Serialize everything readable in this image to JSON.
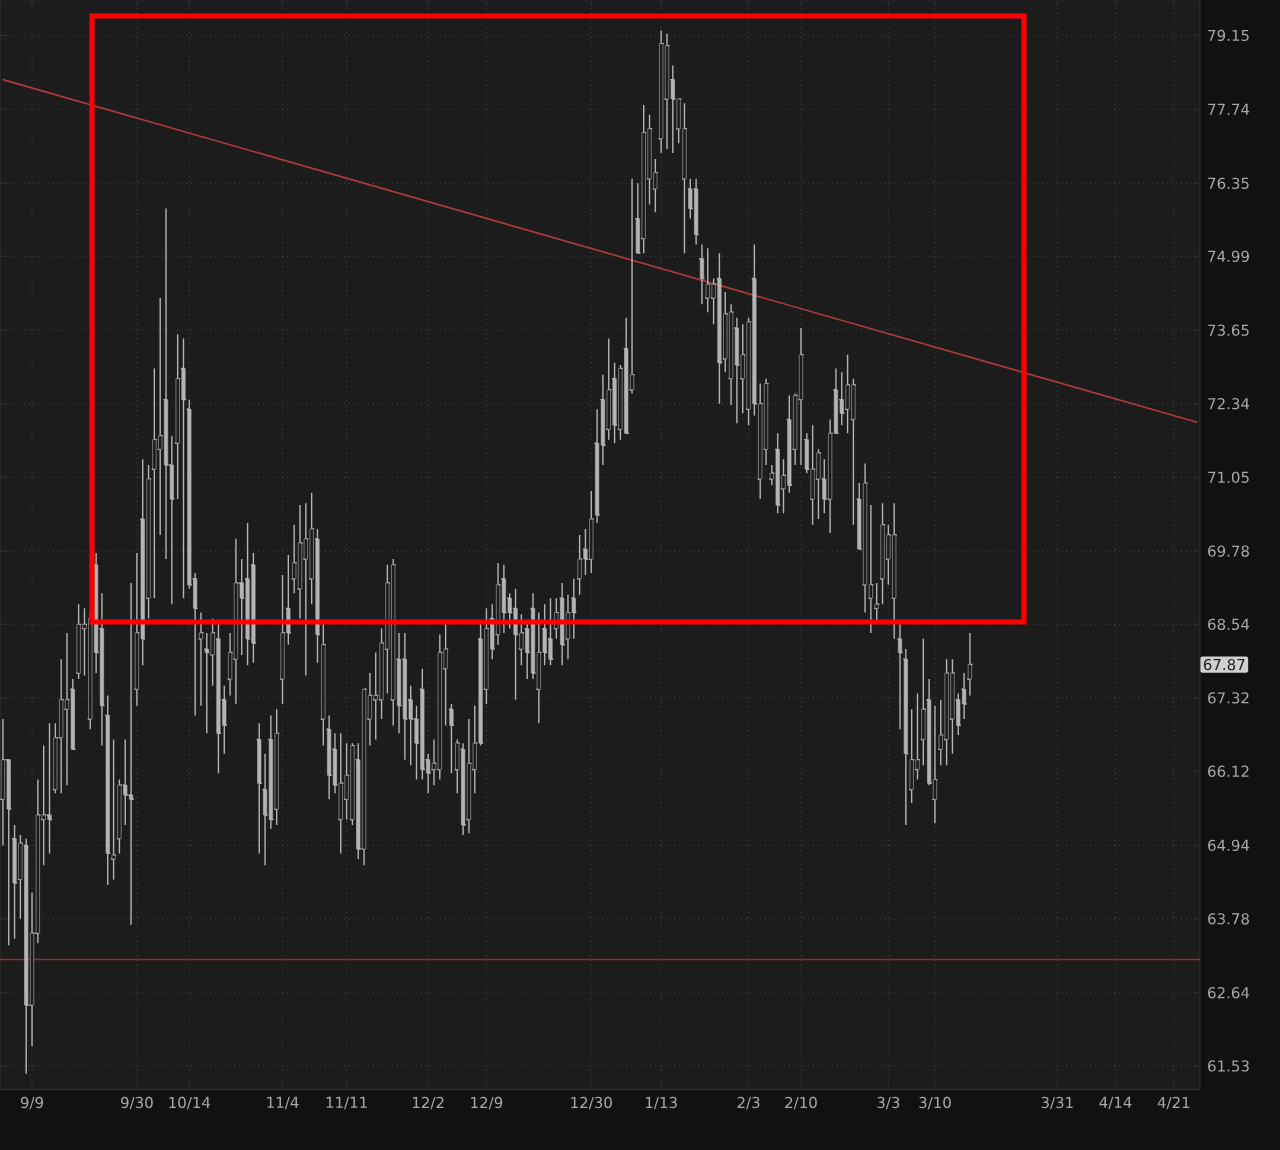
{
  "chart_data": {
    "type": "candlestick",
    "color": "#b4b4b4",
    "categories": [
      null,
      null,
      null,
      null,
      null,
      "9/9",
      null,
      null,
      null,
      null,
      null,
      null,
      null,
      null,
      null,
      null,
      null,
      null,
      null,
      null,
      null,
      null,
      null,
      "9/30",
      null,
      null,
      null,
      null,
      null,
      null,
      null,
      null,
      "10/14",
      null,
      null,
      null,
      null,
      null,
      null,
      null,
      null,
      null,
      null,
      null,
      null,
      null,
      null,
      null,
      "11/4",
      null,
      null,
      null,
      null,
      null,
      null,
      null,
      null,
      null,
      null,
      "11/11",
      null,
      null,
      null,
      null,
      null,
      null,
      null,
      null,
      null,
      null,
      null,
      null,
      null,
      "12/2",
      null,
      null,
      null,
      null,
      null,
      null,
      null,
      null,
      null,
      "12/9",
      null,
      null,
      null,
      null,
      null,
      null,
      null,
      null,
      null,
      null,
      null,
      null,
      null,
      null,
      null,
      null,
      null,
      "12/30",
      null,
      null,
      null,
      null,
      null,
      null,
      null,
      null,
      null,
      null,
      null,
      "1/13",
      null,
      null,
      null,
      null,
      null,
      null,
      null,
      null,
      null,
      null,
      null,
      null,
      null,
      null,
      "2/3",
      null,
      null,
      null,
      null,
      null,
      null,
      null,
      null,
      "2/10",
      null,
      null,
      null,
      null,
      null,
      null,
      null,
      null,
      null,
      null,
      null,
      null,
      null,
      null,
      "3/3",
      null,
      null,
      null,
      null,
      null,
      null,
      null,
      "3/10",
      null,
      null,
      null,
      null,
      null,
      null,
      null,
      null,
      null,
      null,
      null,
      null,
      null,
      null,
      null,
      null,
      null,
      null,
      null,
      null,
      "3/31",
      null,
      null,
      null,
      null,
      null,
      null,
      null,
      null,
      null,
      "4/14",
      null,
      null,
      null,
      null,
      null,
      null,
      null,
      null,
      null,
      "4/21",
      null,
      null,
      null,
      null
    ],
    "ohlc": [
      [
        65.67,
        66.97,
        64.94,
        66.31
      ],
      [
        66.31,
        66.31,
        63.37,
        65.51
      ],
      [
        65.04,
        65.26,
        63.47,
        64.34
      ],
      [
        64.4,
        65.1,
        63.78,
        64.97
      ],
      [
        64.94,
        65.04,
        61.41,
        62.45
      ],
      [
        62.45,
        64.19,
        61.83,
        63.56
      ],
      [
        63.56,
        65.99,
        63.4,
        65.42
      ],
      [
        65.35,
        66.54,
        64.62,
        65.42
      ],
      [
        65.42,
        66.9,
        64.81,
        65.35
      ],
      [
        65.83,
        66.9,
        65.77,
        66.67
      ],
      [
        66.67,
        67.96,
        65.77,
        67.29
      ],
      [
        67.13,
        68.4,
        65.9,
        67.29
      ],
      [
        67.46,
        67.63,
        66.48,
        66.48
      ],
      [
        67.73,
        68.88,
        67.63,
        68.54
      ],
      [
        68.47,
        68.81,
        67.69,
        68.54
      ],
      [
        66.97,
        68.74,
        66.8,
        68.64
      ],
      [
        69.54,
        69.75,
        67.73,
        68.07
      ],
      [
        68.47,
        69.07,
        66.54,
        67.19
      ],
      [
        67.03,
        67.36,
        64.31,
        64.81
      ],
      [
        64.72,
        66.64,
        64.4,
        64.78
      ],
      [
        65.04,
        65.99,
        64.81,
        65.9
      ],
      [
        65.9,
        66.64,
        65.26,
        65.74
      ],
      [
        65.74,
        69.24,
        63.69,
        65.67
      ],
      [
        67.46,
        69.75,
        67.19,
        68.4
      ],
      [
        70.33,
        71.36,
        67.86,
        68.3
      ],
      [
        68.98,
        71.26,
        68.64,
        71.02
      ],
      [
        71.19,
        72.96,
        68.98,
        71.71
      ],
      [
        71.54,
        74.23,
        70.05,
        71.78
      ],
      [
        72.41,
        75.87,
        69.64,
        71.26
      ],
      [
        71.26,
        71.78,
        68.88,
        70.67
      ],
      [
        71.64,
        73.58,
        70.67,
        72.78
      ],
      [
        72.96,
        73.5,
        68.98,
        72.41
      ],
      [
        72.24,
        72.41,
        69.14,
        69.21
      ],
      [
        69.31,
        69.41,
        67.03,
        68.81
      ],
      [
        68.3,
        68.74,
        67.19,
        68.4
      ],
      [
        68.13,
        68.4,
        66.74,
        68.07
      ],
      [
        68.03,
        68.64,
        67.52,
        68.4
      ],
      [
        68.3,
        68.54,
        66.09,
        66.74
      ],
      [
        67.29,
        67.52,
        66.41,
        66.87
      ],
      [
        67.63,
        68.4,
        67.36,
        68.07
      ],
      [
        67.96,
        69.99,
        67.22,
        69.24
      ],
      [
        69.24,
        69.64,
        68.03,
        68.98
      ],
      [
        69.31,
        70.26,
        67.86,
        68.3
      ],
      [
        69.54,
        69.75,
        67.9,
        68.23
      ],
      [
        66.64,
        66.9,
        64.81,
        65.93
      ],
      [
        65.83,
        66.41,
        64.62,
        65.42
      ],
      [
        66.64,
        67.03,
        65.2,
        65.35
      ],
      [
        65.51,
        67.13,
        65.26,
        66.74
      ],
      [
        67.63,
        69.37,
        67.22,
        68.4
      ],
      [
        68.81,
        69.71,
        68.2,
        68.4
      ],
      [
        69.31,
        70.23,
        69.07,
        69.58
      ],
      [
        69.14,
        70.57,
        68.64,
        69.92
      ],
      [
        69.64,
        70.6,
        67.69,
        69.99
      ],
      [
        69.31,
        70.78,
        68.88,
        70.16
      ],
      [
        69.99,
        70.16,
        67.9,
        68.37
      ],
      [
        66.97,
        68.54,
        66.54,
        68.2
      ],
      [
        66.8,
        67.03,
        65.67,
        66.06
      ],
      [
        66.48,
        66.74,
        65.77,
        65.9
      ],
      [
        65.35,
        66.74,
        64.81,
        65.93
      ],
      [
        65.67,
        66.58,
        65.35,
        66.06
      ],
      [
        65.35,
        66.58,
        65.26,
        66.54
      ],
      [
        66.31,
        66.58,
        64.72,
        64.88
      ],
      [
        64.88,
        67.46,
        64.62,
        67.46
      ],
      [
        66.97,
        67.73,
        66.54,
        67.36
      ],
      [
        67.29,
        68.07,
        66.64,
        67.36
      ],
      [
        67.29,
        68.47,
        66.97,
        68.23
      ],
      [
        68.13,
        69.54,
        67.39,
        69.24
      ],
      [
        67.29,
        69.64,
        66.87,
        69.54
      ],
      [
        67.96,
        68.4,
        66.74,
        67.19
      ],
      [
        67.96,
        68.4,
        66.31,
        66.97
      ],
      [
        67.29,
        67.52,
        66.22,
        66.97
      ],
      [
        66.97,
        67.19,
        65.99,
        66.58
      ],
      [
        67.46,
        67.8,
        65.99,
        66.15
      ],
      [
        66.31,
        66.41,
        65.77,
        66.09
      ],
      [
        66.15,
        66.64,
        65.9,
        66.25
      ],
      [
        66.15,
        68.37,
        65.99,
        68.07
      ],
      [
        67.8,
        68.54,
        66.87,
        68.13
      ],
      [
        67.13,
        67.22,
        66.09,
        66.87
      ],
      [
        66.15,
        66.64,
        65.77,
        66.58
      ],
      [
        66.48,
        66.58,
        65.1,
        65.26
      ],
      [
        65.35,
        66.97,
        65.13,
        66.25
      ],
      [
        66.15,
        67.19,
        65.77,
        66.58
      ],
      [
        68.3,
        68.54,
        66.54,
        66.58
      ],
      [
        67.46,
        68.81,
        67.22,
        68.47
      ],
      [
        68.64,
        68.88,
        67.96,
        68.13
      ],
      [
        68.37,
        69.58,
        68.2,
        69.21
      ],
      [
        69.31,
        69.54,
        68.4,
        68.74
      ],
      [
        68.98,
        69.07,
        68.47,
        68.74
      ],
      [
        68.81,
        69.14,
        67.29,
        68.37
      ],
      [
        68.13,
        68.71,
        67.86,
        68.4
      ],
      [
        68.47,
        68.57,
        67.63,
        68.07
      ],
      [
        68.81,
        69.07,
        67.63,
        67.73
      ],
      [
        67.46,
        68.74,
        66.9,
        68.07
      ],
      [
        68.47,
        68.88,
        67.86,
        68.07
      ],
      [
        68.3,
        68.98,
        67.86,
        67.96
      ],
      [
        68.47,
        68.98,
        68.3,
        68.74
      ],
      [
        68.98,
        69.24,
        67.86,
        68.2
      ],
      [
        68.3,
        69.04,
        67.96,
        68.74
      ],
      [
        68.98,
        69.31,
        68.3,
        68.74
      ],
      [
        69.31,
        70.05,
        69.04,
        69.64
      ],
      [
        69.81,
        70.16,
        69.37,
        69.64
      ],
      [
        69.64,
        70.81,
        69.41,
        70.33
      ],
      [
        71.64,
        72.24,
        70.26,
        70.4
      ],
      [
        72.41,
        72.85,
        71.26,
        71.61
      ],
      [
        71.89,
        73.5,
        71.71,
        72.59
      ],
      [
        72.78,
        73.07,
        71.64,
        71.96
      ],
      [
        71.89,
        73.03,
        71.71,
        72.96
      ],
      [
        73.32,
        73.87,
        71.82,
        71.82
      ],
      [
        72.59,
        76.43,
        72.52,
        72.85
      ],
      [
        75.69,
        76.35,
        75.06,
        75.06
      ],
      [
        75.32,
        77.82,
        75.06,
        77.29
      ],
      [
        76.43,
        77.63,
        75.95,
        77.37
      ],
      [
        76.24,
        76.8,
        75.8,
        76.54
      ],
      [
        77.18,
        79.26,
        76.91,
        79.0
      ],
      [
        77.93,
        79.19,
        76.99,
        78.96
      ],
      [
        78.31,
        78.58,
        76.91,
        77.93
      ],
      [
        77.37,
        77.93,
        77.1,
        77.93
      ],
      [
        76.43,
        77.85,
        75.06,
        77.37
      ],
      [
        76.24,
        76.43,
        75.69,
        75.87
      ],
      [
        76.24,
        76.43,
        75.21,
        75.39
      ],
      [
        74.95,
        75.21,
        74.12,
        74.59
      ],
      [
        74.23,
        75.14,
        73.98,
        74.48
      ],
      [
        74.23,
        74.59,
        73.76,
        74.48
      ],
      [
        74.59,
        75.06,
        72.34,
        73.07
      ],
      [
        73.14,
        74.34,
        72.89,
        73.94
      ],
      [
        72.78,
        74.12,
        72.31,
        73.98
      ],
      [
        73.69,
        73.87,
        71.99,
        73.03
      ],
      [
        72.78,
        73.76,
        72.17,
        73.21
      ],
      [
        72.24,
        73.87,
        71.96,
        73.8
      ],
      [
        74.59,
        75.21,
        72.13,
        72.34
      ],
      [
        71.02,
        72.7,
        70.67,
        72.34
      ],
      [
        71.54,
        72.78,
        71.26,
        72.7
      ],
      [
        71.02,
        71.26,
        70.91,
        71.12
      ],
      [
        71.54,
        71.82,
        70.43,
        70.57
      ],
      [
        70.85,
        71.36,
        70.43,
        71.08
      ],
      [
        72.06,
        72.49,
        70.78,
        70.91
      ],
      [
        71.54,
        72.52,
        71.26,
        72.49
      ],
      [
        72.41,
        73.69,
        71.26,
        73.21
      ],
      [
        71.71,
        71.82,
        71.12,
        71.19
      ],
      [
        70.67,
        71.96,
        70.23,
        71.19
      ],
      [
        71.02,
        71.54,
        70.33,
        71.47
      ],
      [
        71.02,
        71.36,
        70.43,
        70.67
      ],
      [
        70.67,
        72.06,
        70.09,
        71.82
      ],
      [
        72.59,
        72.96,
        71.82,
        71.82
      ],
      [
        72.41,
        72.89,
        71.96,
        72.17
      ],
      [
        72.24,
        73.21,
        71.82,
        72.67
      ],
      [
        72.06,
        72.78,
        70.23,
        72.67
      ],
      [
        70.67,
        70.95,
        69.81,
        69.81
      ],
      [
        69.21,
        71.29,
        68.74,
        70.95
      ],
      [
        68.98,
        70.57,
        68.4,
        69.21
      ],
      [
        68.81,
        69.24,
        68.54,
        68.88
      ],
      [
        69.31,
        70.6,
        68.88,
        70.23
      ],
      [
        69.64,
        70.23,
        69.21,
        70.05
      ],
      [
        68.98,
        70.6,
        68.3,
        70.05
      ],
      [
        68.3,
        68.54,
        66.8,
        68.07
      ],
      [
        67.96,
        68.13,
        65.26,
        66.41
      ],
      [
        65.83,
        67.13,
        65.61,
        66.31
      ],
      [
        66.15,
        67.39,
        65.99,
        66.31
      ],
      [
        66.64,
        68.3,
        66.22,
        67.13
      ],
      [
        67.29,
        67.63,
        65.9,
        65.93
      ],
      [
        65.67,
        67.19,
        65.29,
        65.99
      ],
      [
        66.48,
        67.29,
        66.22,
        66.71
      ],
      [
        66.64,
        67.96,
        66.22,
        67.73
      ],
      [
        66.97,
        67.96,
        66.41,
        67.73
      ],
      [
        67.29,
        67.39,
        66.71,
        66.87
      ],
      [
        67.46,
        67.73,
        66.97,
        67.22
      ],
      [
        67.63,
        68.4,
        67.36,
        67.87
      ],
      null,
      null,
      null,
      null,
      null,
      null,
      null,
      null,
      null,
      null,
      null,
      null,
      null,
      null,
      null,
      null,
      null,
      null,
      null,
      null,
      null,
      null,
      null,
      null,
      null,
      null,
      null,
      null,
      null,
      null,
      null,
      null,
      null,
      null,
      null,
      null,
      null,
      null,
      null
    ],
    "series": [
      {
        "type": "line",
        "color": "#b23a3a",
        "values": [
          78.31,
          null,
          null,
          null,
          null,
          null,
          null,
          null,
          null,
          null,
          null,
          null,
          null,
          null,
          null,
          null,
          null,
          null,
          null,
          null,
          null,
          null,
          null,
          null,
          null,
          null,
          null,
          null,
          null,
          null,
          null,
          null,
          null,
          null,
          null,
          null,
          null,
          null,
          null,
          null,
          null,
          null,
          null,
          null,
          null,
          null,
          null,
          null,
          null,
          null,
          null,
          null,
          null,
          null,
          null,
          null,
          null,
          null,
          null,
          null,
          null,
          null,
          null,
          null,
          null,
          null,
          null,
          null,
          null,
          null,
          null,
          null,
          null,
          null,
          null,
          null,
          null,
          null,
          null,
          null,
          null,
          null,
          null,
          null,
          null,
          null,
          null,
          null,
          null,
          null,
          null,
          null,
          null,
          null,
          null,
          null,
          null,
          null,
          null,
          null,
          null,
          null,
          null,
          null,
          null,
          null,
          null,
          null,
          null,
          null,
          null,
          null,
          null,
          null,
          null,
          null,
          null,
          null,
          null,
          null,
          null,
          null,
          null,
          null,
          null,
          null,
          null,
          null,
          null,
          null,
          null,
          null,
          null,
          null,
          null,
          null,
          null,
          null,
          null,
          null,
          null,
          null,
          null,
          null,
          null,
          null,
          null,
          null,
          null,
          null,
          null,
          null,
          null,
          null,
          null,
          null,
          null,
          null,
          null,
          null,
          null,
          null,
          null,
          null,
          null,
          null,
          null,
          null,
          null,
          null,
          null,
          null,
          null,
          null,
          null,
          null,
          null,
          null,
          null,
          null,
          null,
          null,
          null,
          null,
          null,
          null,
          null,
          null,
          null,
          null,
          null,
          null,
          null,
          null,
          null,
          null,
          null,
          null,
          null,
          null,
          null,
          null,
          null,
          null,
          null,
          72.01
        ]
      }
    ],
    "ref_lines": [
      {
        "axis": "y",
        "value": 63.15,
        "color": "#8a3030"
      }
    ],
    "annotations": [
      {
        "text": "67.87",
        "y": 67.87
      }
    ],
    "ylim": [
      61.17,
      79.85
    ],
    "yticks": [
      61.53,
      62.64,
      63.78,
      64.94,
      66.12,
      67.32,
      68.54,
      69.78,
      71.05,
      72.34,
      73.65,
      74.99,
      76.35,
      77.74,
      79.15
    ],
    "log": "y",
    "grid": true
  }
}
